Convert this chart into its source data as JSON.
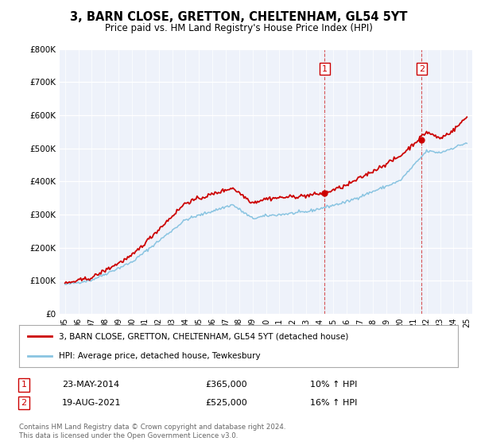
{
  "title": "3, BARN CLOSE, GRETTON, CHELTENHAM, GL54 5YT",
  "subtitle": "Price paid vs. HM Land Registry's House Price Index (HPI)",
  "ylim": [
    0,
    800000
  ],
  "hpi_color": "#89c4e1",
  "property_color": "#cc0000",
  "bg_color": "#eef2fa",
  "sale1_year": 2014.39,
  "sale1_price": 365000,
  "sale2_year": 2021.63,
  "sale2_price": 525000,
  "legend_property": "3, BARN CLOSE, GRETTON, CHELTENHAM, GL54 5YT (detached house)",
  "legend_hpi": "HPI: Average price, detached house, Tewkesbury",
  "note1_label": "1",
  "note1_date": "23-MAY-2014",
  "note1_price": "£365,000",
  "note1_pct": "10% ↑ HPI",
  "note2_label": "2",
  "note2_date": "19-AUG-2021",
  "note2_price": "£525,000",
  "note2_pct": "16% ↑ HPI",
  "footer": "Contains HM Land Registry data © Crown copyright and database right 2024.\nThis data is licensed under the Open Government Licence v3.0."
}
